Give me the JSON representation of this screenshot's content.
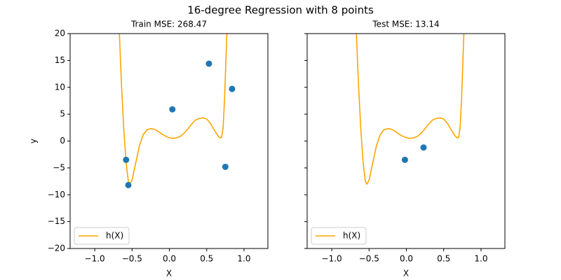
{
  "title": "16-degree Regression with 8 points",
  "chart_data": [
    {
      "type": "scatter",
      "title": "Train MSE: 268.47",
      "xlabel": "X",
      "ylabel": "y",
      "x": [
        -0.58,
        -0.55,
        0.04,
        0.53,
        0.75,
        0.84
      ],
      "values": [
        -3.5,
        -8.2,
        5.9,
        14.4,
        -4.8,
        9.7
      ],
      "color": "#1f77b4",
      "series": [
        {
          "name": "h(X)",
          "color": "#ffa500",
          "x": [
            -0.67,
            -0.64,
            -0.61,
            -0.58,
            -0.55,
            -0.53,
            -0.5,
            -0.45,
            -0.4,
            -0.35,
            -0.3,
            -0.25,
            -0.2,
            -0.15,
            -0.1,
            -0.05,
            0,
            0.05,
            0.1,
            0.15,
            0.2,
            0.25,
            0.3,
            0.35,
            0.4,
            0.45,
            0.5,
            0.55,
            0.6,
            0.65,
            0.68,
            0.7,
            0.72,
            0.74,
            0.76,
            0.77
          ],
          "values": [
            20,
            10,
            2,
            -4,
            -7.5,
            -8,
            -7.3,
            -4,
            -0.8,
            1.2,
            2.1,
            2.3,
            2.2,
            1.8,
            1.3,
            0.9,
            0.6,
            0.5,
            0.6,
            0.9,
            1.5,
            2.3,
            3.2,
            3.9,
            4.2,
            4.3,
            4.1,
            3.3,
            2.1,
            1.0,
            0.6,
            0.7,
            2.5,
            8,
            16,
            20
          ]
        }
      ],
      "xlim": [
        -1.33,
        1.32
      ],
      "ylim": [
        -20,
        20
      ],
      "xticks": [
        {
          "value": -1,
          "label": "−1.0"
        },
        {
          "value": -0.5,
          "label": "−0.5"
        },
        {
          "value": 0,
          "label": "0.0"
        },
        {
          "value": 0.5,
          "label": "0.5"
        },
        {
          "value": 1,
          "label": "1.0"
        }
      ],
      "yticks": [
        {
          "value": -20,
          "label": "−20"
        },
        {
          "value": -15,
          "label": "−15"
        },
        {
          "value": -10,
          "label": "−10"
        },
        {
          "value": -5,
          "label": "−5"
        },
        0,
        5,
        10,
        15,
        20
      ],
      "ytick_labels": true,
      "legend": "lower left"
    },
    {
      "type": "scatter",
      "title": "Test MSE: 13.14",
      "xlabel": "X",
      "x": [
        -0.02,
        0.23
      ],
      "values": [
        -3.5,
        -1.2
      ],
      "color": "#1f77b4",
      "series": [
        {
          "name": "h(X)",
          "color": "#ffa500",
          "x": [
            -0.67,
            -0.64,
            -0.61,
            -0.58,
            -0.55,
            -0.53,
            -0.5,
            -0.45,
            -0.4,
            -0.35,
            -0.3,
            -0.25,
            -0.2,
            -0.15,
            -0.1,
            -0.05,
            0,
            0.05,
            0.1,
            0.15,
            0.2,
            0.25,
            0.3,
            0.35,
            0.4,
            0.45,
            0.5,
            0.55,
            0.6,
            0.65,
            0.68,
            0.7,
            0.72,
            0.74,
            0.76,
            0.77
          ],
          "values": [
            20,
            10,
            2,
            -4,
            -7.5,
            -8,
            -7.3,
            -4,
            -0.8,
            1.2,
            2.1,
            2.3,
            2.2,
            1.8,
            1.3,
            0.9,
            0.6,
            0.5,
            0.6,
            0.9,
            1.5,
            2.3,
            3.2,
            3.9,
            4.2,
            4.3,
            4.1,
            3.3,
            2.1,
            1.0,
            0.6,
            0.7,
            2.5,
            8,
            16,
            20
          ]
        }
      ],
      "xlim": [
        -1.33,
        1.32
      ],
      "ylim": [
        -20,
        20
      ],
      "xticks": [
        {
          "value": -1,
          "label": "−1.0"
        },
        {
          "value": -0.5,
          "label": "−0.5"
        },
        {
          "value": 0,
          "label": "0.0"
        },
        {
          "value": 0.5,
          "label": "0.5"
        },
        {
          "value": 1,
          "label": "1.0"
        }
      ],
      "yticks": [
        -20,
        -15,
        -10,
        -5,
        0,
        5,
        10,
        15,
        20
      ],
      "ytick_labels": false,
      "legend": "lower left"
    }
  ]
}
